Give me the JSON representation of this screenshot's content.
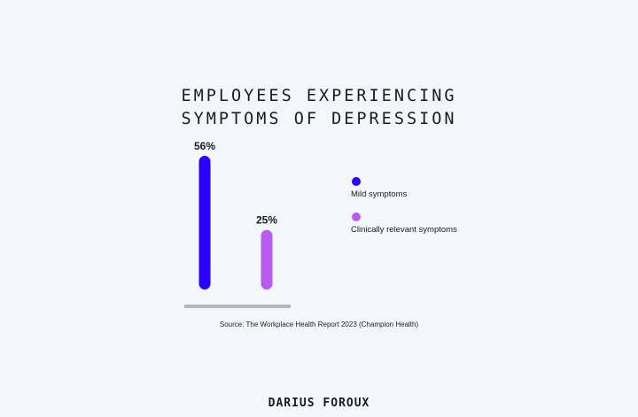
{
  "chart_data": {
    "type": "bar",
    "title_lines": [
      "EMPLOYEES EXPERIENCING",
      "SYMPTOMS OF DEPRESSION"
    ],
    "categories": [
      "Mild symptoms",
      "Clinically relevant symptoms"
    ],
    "values": [
      56,
      25
    ],
    "value_labels": [
      "56%",
      "25%"
    ],
    "colors": [
      "#2a00ff",
      "#b85cf0"
    ],
    "ylim": [
      0,
      56
    ],
    "legend_position": "right",
    "grid": false,
    "baseline_color": "#b9b9b9"
  },
  "source": "Source: The Workplace Health Report 2023 (Champion Health)",
  "brand": "DARIUS FOROUX"
}
